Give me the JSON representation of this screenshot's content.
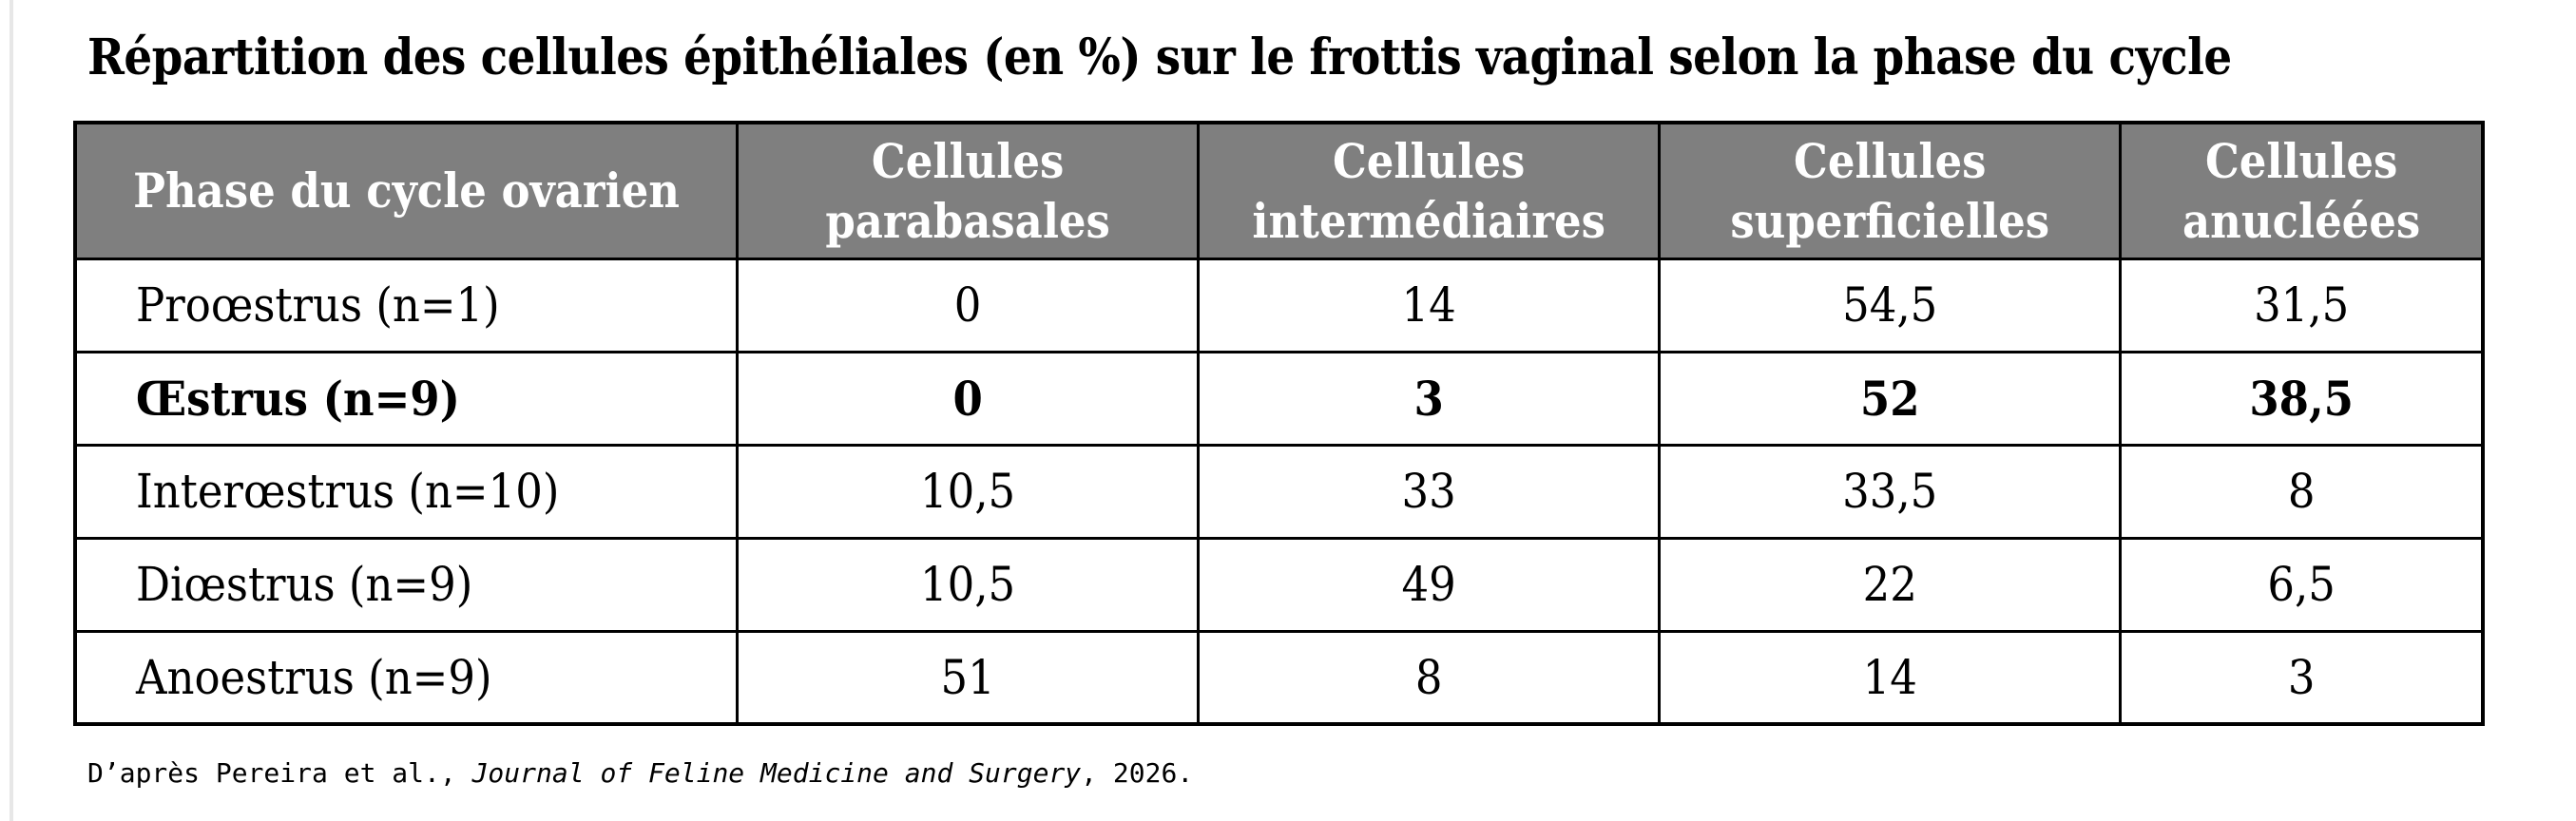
{
  "title": "Répartition des cellules épithéliales (en %) sur le frottis vaginal selon la phase du cycle",
  "table": {
    "columns": [
      "Phase du cycle ovarien",
      "Cellules parabasales",
      "Cellules intermédiaires",
      "Cellules superficielles",
      "Cellules anucléées"
    ],
    "rows": [
      {
        "label": "Proœstrus (n=1)",
        "values": [
          "0",
          "14",
          "54,5",
          "31,5"
        ],
        "bold": false
      },
      {
        "label": "Œstrus (n=9)",
        "values": [
          "0",
          "3",
          "52",
          "38,5"
        ],
        "bold": true
      },
      {
        "label": "Interœstrus (n=10)",
        "values": [
          "10,5",
          "33",
          "33,5",
          "8"
        ],
        "bold": false
      },
      {
        "label": "Diœstrus (n=9)",
        "values": [
          "10,5",
          "49",
          "22",
          "6,5"
        ],
        "bold": false
      },
      {
        "label": "Anoestrus (n=9)",
        "values": [
          "51",
          "8",
          "14",
          "3"
        ],
        "bold": false
      }
    ],
    "header_bg": "#7f7f7f",
    "header_text_color": "#ffffff",
    "border_color": "#000000"
  },
  "source_note": {
    "prefix": "D’après Pereira et al., ",
    "journal": "Journal of Feline Medicine and Surgery",
    "suffix": ", 2026."
  }
}
